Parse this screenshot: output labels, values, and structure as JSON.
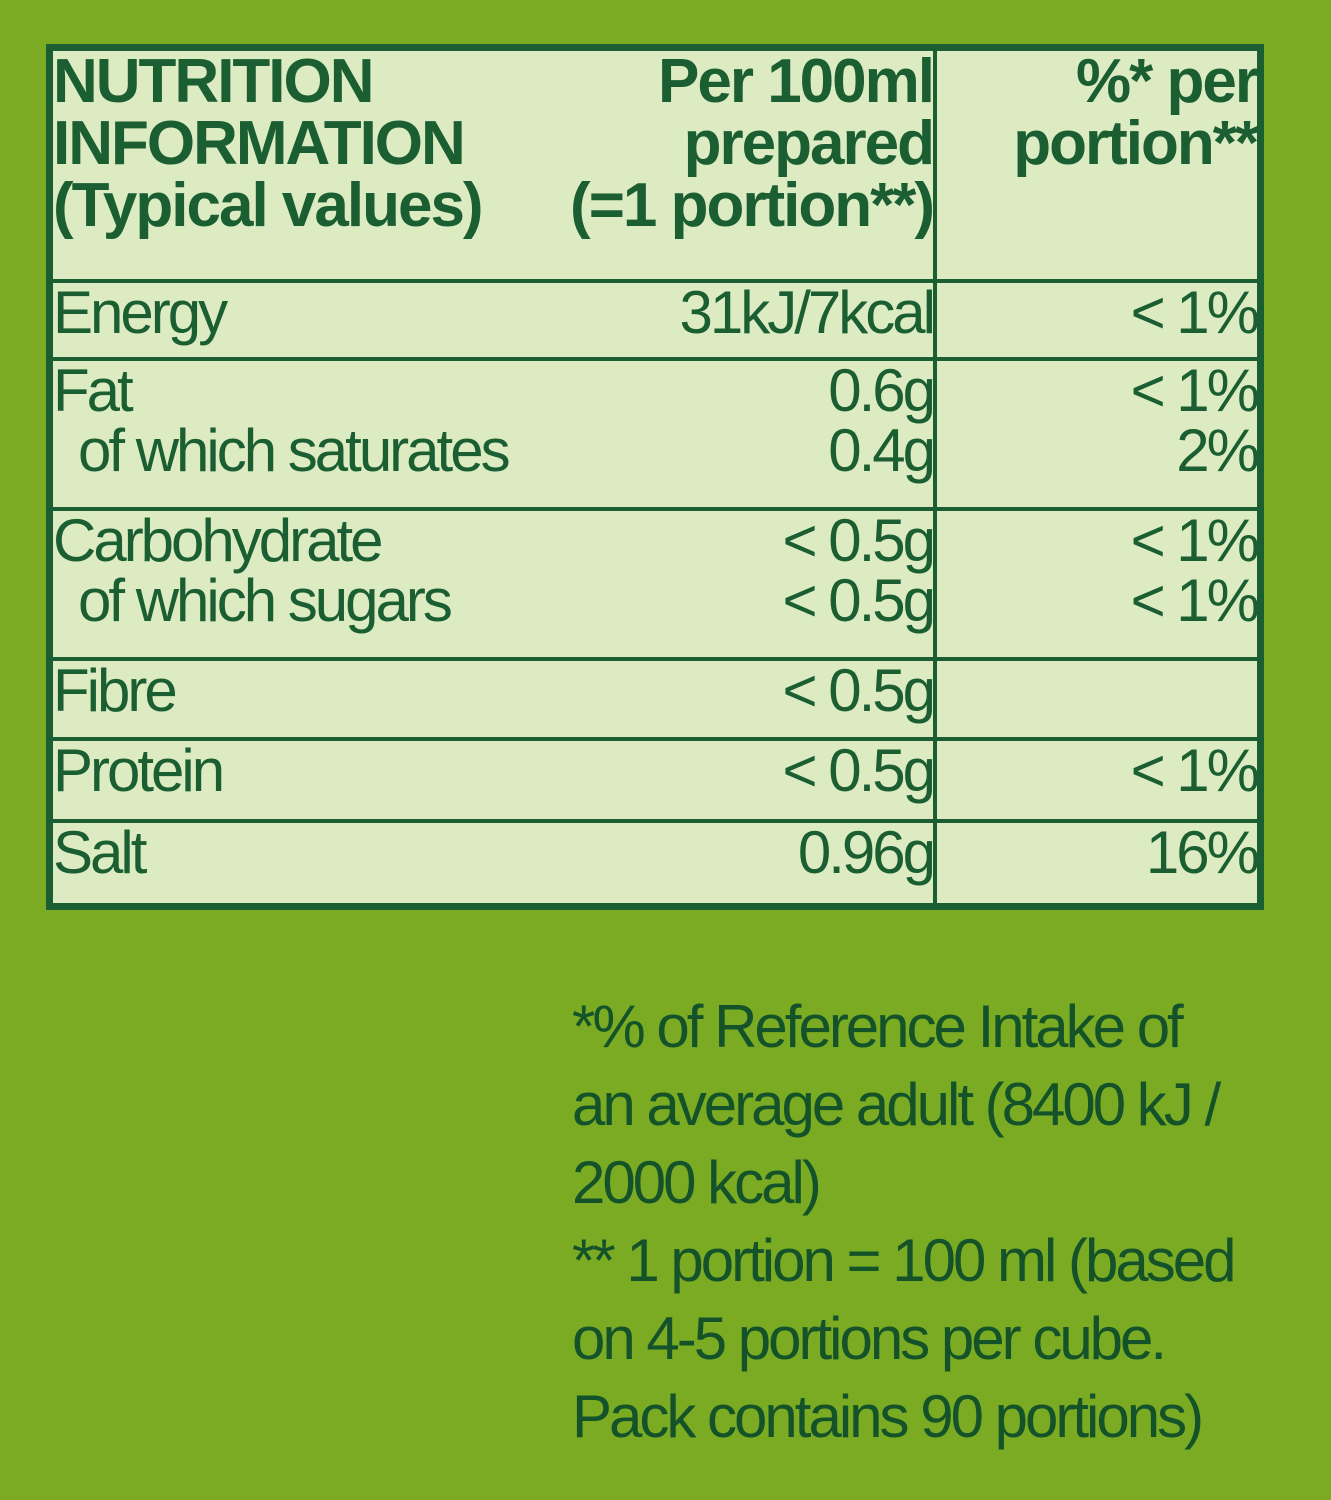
{
  "header": {
    "label_lines": [
      "NUTRITION",
      "INFORMATION",
      "(Typical values)"
    ],
    "per_lines": [
      "Per 100ml",
      "prepared",
      "(=1 portion**)"
    ],
    "pct_lines": [
      "%* per",
      "portion**"
    ]
  },
  "rows": [
    {
      "labels": [
        "Energy"
      ],
      "per": [
        "31kJ/7kcal"
      ],
      "pct": [
        "< 1%"
      ]
    },
    {
      "labels": [
        "Fat",
        "of which saturates"
      ],
      "per": [
        "0.6g",
        "0.4g"
      ],
      "pct": [
        "< 1%",
        "2%"
      ]
    },
    {
      "labels": [
        "Carbohydrate",
        "of which sugars"
      ],
      "per": [
        "< 0.5g",
        "< 0.5g"
      ],
      "pct": [
        "< 1%",
        "< 1%"
      ]
    },
    {
      "labels": [
        "Fibre"
      ],
      "per": [
        "< 0.5g"
      ],
      "pct": [
        ""
      ]
    },
    {
      "labels": [
        "Protein"
      ],
      "per": [
        "< 0.5g"
      ],
      "pct": [
        "< 1%"
      ]
    },
    {
      "labels": [
        "Salt"
      ],
      "per": [
        "0.96g"
      ],
      "pct": [
        "16%"
      ]
    }
  ],
  "footnote_lines": [
    "*% of Reference Intake of",
    "an average adult (8400 kJ /",
    "2000 kcal)",
    "** 1 portion = 100 ml (based",
    "on 4-5 portions per cube.",
    "Pack contains 90 portions)"
  ],
  "colors": {
    "background": "#7aab22",
    "table_fill": "#dcebc2",
    "text": "#1a5e32"
  }
}
